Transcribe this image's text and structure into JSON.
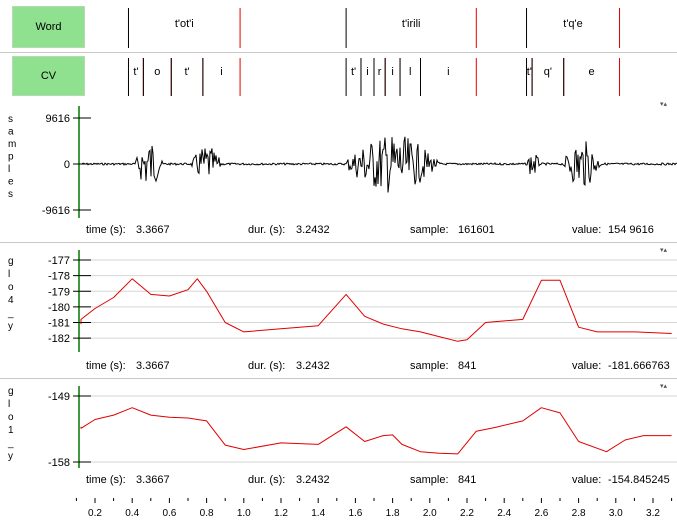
{
  "tiers": {
    "word": {
      "label": "Word",
      "segments": [
        {
          "text": "t'ot'i",
          "start": 0.38,
          "end": 0.98
        },
        {
          "text": "t'irili",
          "start": 1.55,
          "end": 2.25
        },
        {
          "text": "t'q'e",
          "start": 2.52,
          "end": 3.02
        }
      ]
    },
    "cv": {
      "label": "CV",
      "segments": [
        {
          "text": "t'",
          "start": 0.38,
          "end": 0.46
        },
        {
          "text": "o",
          "start": 0.46,
          "end": 0.61
        },
        {
          "text": "t'",
          "start": 0.61,
          "end": 0.78
        },
        {
          "text": "i",
          "start": 0.78,
          "end": 0.98
        },
        {
          "text": "t'",
          "start": 1.55,
          "end": 1.63
        },
        {
          "text": "i",
          "start": 1.63,
          "end": 1.7
        },
        {
          "text": "r",
          "start": 1.7,
          "end": 1.76
        },
        {
          "text": "i",
          "start": 1.76,
          "end": 1.84
        },
        {
          "text": "l",
          "start": 1.84,
          "end": 1.95
        },
        {
          "text": "i",
          "start": 1.95,
          "end": 2.25
        },
        {
          "text": "t'",
          "start": 2.52,
          "end": 2.55
        },
        {
          "text": "q'",
          "start": 2.55,
          "end": 2.72
        },
        {
          "text": "e",
          "start": 2.72,
          "end": 3.02
        }
      ]
    }
  },
  "tracks": {
    "samples": {
      "label": "samples",
      "ticks": [
        "9616",
        "0",
        "-9616"
      ],
      "info": {
        "time_label": "time (s):",
        "time": "3.3667",
        "dur_label": "dur. (s):",
        "dur": "3.2432",
        "sample_label": "sample:",
        "sample": "161601",
        "value_label": "value:",
        "value": "154 9616"
      }
    },
    "glo4": {
      "label": "glo4_y",
      "ticks": [
        "-177",
        "-178",
        "-179",
        "-180",
        "-181",
        "-182"
      ],
      "info": {
        "time_label": "time (s):",
        "time": "3.3667",
        "dur_label": "dur. (s):",
        "dur": "3.2432",
        "sample_label": "sample:",
        "sample": "841",
        "value_label": "value:",
        "value": "-181.666763"
      }
    },
    "glo1": {
      "label": "glo1_y",
      "ticks": [
        "-149",
        "-158"
      ],
      "info": {
        "time_label": "time (s):",
        "time": "3.3667",
        "dur_label": "dur. (s):",
        "dur": "3.2432",
        "sample_label": "sample:",
        "sample": "841",
        "value_label": "value:",
        "value": "-154.845245"
      }
    }
  },
  "time_axis": {
    "labels": [
      "0.2",
      "0.4",
      "0.6",
      "0.8",
      "1.0",
      "1.2",
      "1.4",
      "1.6",
      "1.8",
      "2.0",
      "2.2",
      "2.4",
      "2.6",
      "2.8",
      "3.0",
      "3.2"
    ]
  },
  "chart_data": [
    {
      "type": "line",
      "series": [
        {
          "x": [
            0.0,
            0.1,
            0.2,
            0.3,
            0.4,
            0.5,
            0.6,
            0.7,
            0.75,
            0.8,
            0.9,
            1.0,
            1.2,
            1.4,
            1.55,
            1.65,
            1.75,
            1.85,
            1.95,
            2.05,
            2.15,
            2.2,
            2.3,
            2.5,
            2.6,
            2.7,
            2.8,
            2.9,
            3.1,
            3.3
          ],
          "y": [
            -181.1,
            -180.8,
            -180.1,
            -179.4,
            -178.2,
            -179.2,
            -179.3,
            -178.9,
            -178.2,
            -179.0,
            -181.0,
            -181.6,
            -181.4,
            -181.2,
            -179.2,
            -180.6,
            -181.1,
            -181.4,
            -181.6,
            -181.9,
            -182.2,
            -182.1,
            -181.0,
            -180.8,
            -178.3,
            -178.3,
            -181.3,
            -181.6,
            -181.6,
            -181.7
          ]
        }
      ],
      "ylim": [
        -182.5,
        -177
      ]
    },
    {
      "type": "line",
      "series": [
        {
          "x": [
            0.0,
            0.1,
            0.2,
            0.3,
            0.4,
            0.5,
            0.6,
            0.7,
            0.8,
            0.9,
            1.0,
            1.2,
            1.4,
            1.55,
            1.65,
            1.75,
            1.8,
            1.85,
            1.95,
            2.05,
            2.15,
            2.25,
            2.35,
            2.5,
            2.6,
            2.7,
            2.8,
            2.95,
            3.05,
            3.15,
            3.3
          ],
          "y": [
            -153.2,
            -153.4,
            -152.2,
            -151.6,
            -150.6,
            -151.6,
            -151.9,
            -152.0,
            -152.4,
            -155.7,
            -156.3,
            -155.4,
            -155.6,
            -153.2,
            -155.2,
            -154.4,
            -154.3,
            -155.6,
            -156.6,
            -156.8,
            -156.9,
            -153.8,
            -153.3,
            -152.4,
            -150.6,
            -151.3,
            -155.2,
            -156.6,
            -155.0,
            -154.4,
            -154.4
          ]
        }
      ],
      "ylim": [
        -158,
        -149
      ]
    }
  ],
  "colors": {
    "tier_label_bg": "#8fe08f",
    "boundary_start": "#000000",
    "boundary_end": "#e00000",
    "curve": "#e00000",
    "axis_line": "#007700",
    "grid": "#d6d6d6"
  }
}
